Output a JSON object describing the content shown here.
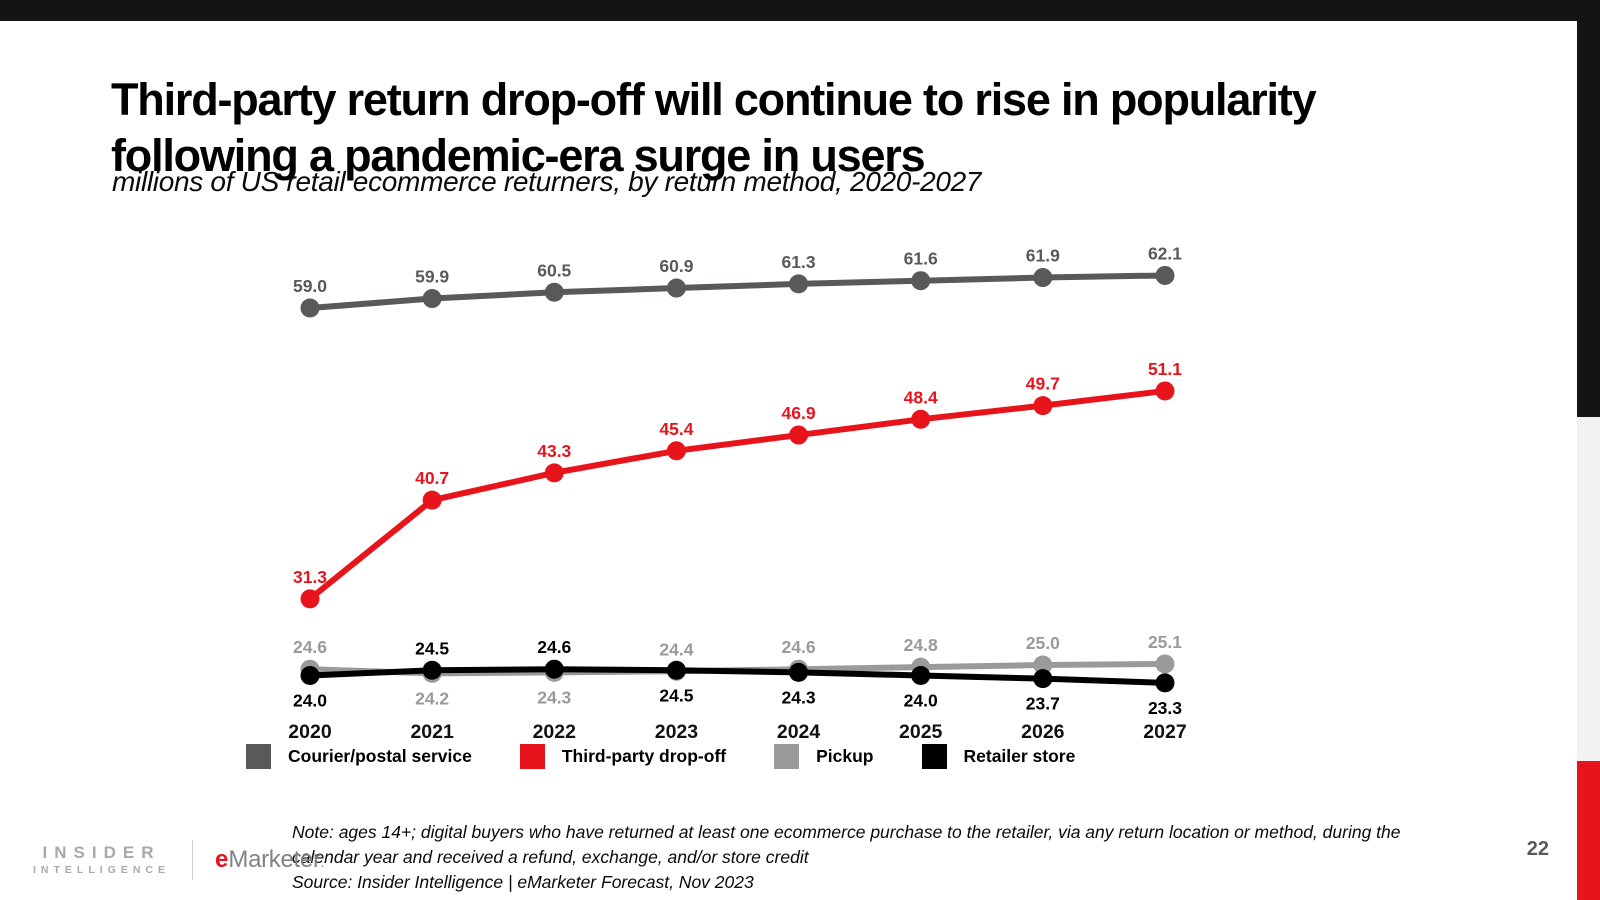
{
  "page": {
    "title": "Third-party return drop-off will continue to rise in popularity following a pandemic-era surge in users",
    "subtitle": "millions of US retail ecommerce returners, by return method, 2020-2027",
    "page_number": "22"
  },
  "footer": {
    "note_lines": [
      "Note: ages 14+; digital buyers who have returned at least one ecommerce purchase to the retailer, via any return location or method, during the",
      "calendar year and received a refund, exchange, and/or store credit"
    ],
    "source": "Source: Insider Intelligence | eMarketer Forecast, Nov 2023"
  },
  "branding": {
    "insider_line1": "INSIDER",
    "insider_line2": "INTELLIGENCE",
    "emarketer_e": "e",
    "emarketer_rest": "Marketer",
    "emarketer_tm": "."
  },
  "colors": {
    "top_bar": "#141414",
    "edge_black": "#141414",
    "edge_gray": "#f2f2f2",
    "edge_red": "#e8141c",
    "accent_red": "#e8141c"
  },
  "chart_data": {
    "type": "line",
    "title": "millions of US retail ecommerce returners, by return method, 2020-2027",
    "categories": [
      "2020",
      "2021",
      "2022",
      "2023",
      "2024",
      "2025",
      "2026",
      "2027"
    ],
    "series": [
      {
        "name": "Courier/postal service",
        "color": "#58595b",
        "values": [
          59.0,
          59.9,
          60.5,
          60.9,
          61.3,
          61.6,
          61.9,
          62.1
        ],
        "label_positions": [
          "above",
          "above",
          "above",
          "above",
          "above",
          "above",
          "above",
          "above"
        ]
      },
      {
        "name": "Third-party drop-off",
        "color": "#e8141c",
        "values": [
          31.3,
          40.7,
          43.3,
          45.4,
          46.9,
          48.4,
          49.7,
          51.1
        ],
        "label_positions": [
          "above",
          "above",
          "above",
          "above",
          "above",
          "above",
          "above",
          "above"
        ]
      },
      {
        "name": "Pickup",
        "color": "#9a9a9a",
        "values": [
          24.6,
          24.2,
          24.3,
          24.4,
          24.6,
          24.8,
          25.0,
          25.1
        ],
        "label_positions": [
          "above",
          "below",
          "below",
          "above",
          "above",
          "above",
          "above",
          "above"
        ]
      },
      {
        "name": "Retailer store",
        "color": "#000000",
        "values": [
          24.0,
          24.5,
          24.6,
          24.5,
          24.3,
          24.0,
          23.7,
          23.3
        ],
        "label_positions": [
          "below",
          "above",
          "above",
          "below",
          "below",
          "below",
          "below",
          "below"
        ]
      }
    ],
    "xlabel": "",
    "ylabel": "",
    "ylim": [
      20,
      65
    ],
    "grid": false,
    "legend_position": "bottom",
    "data_labels": true
  }
}
